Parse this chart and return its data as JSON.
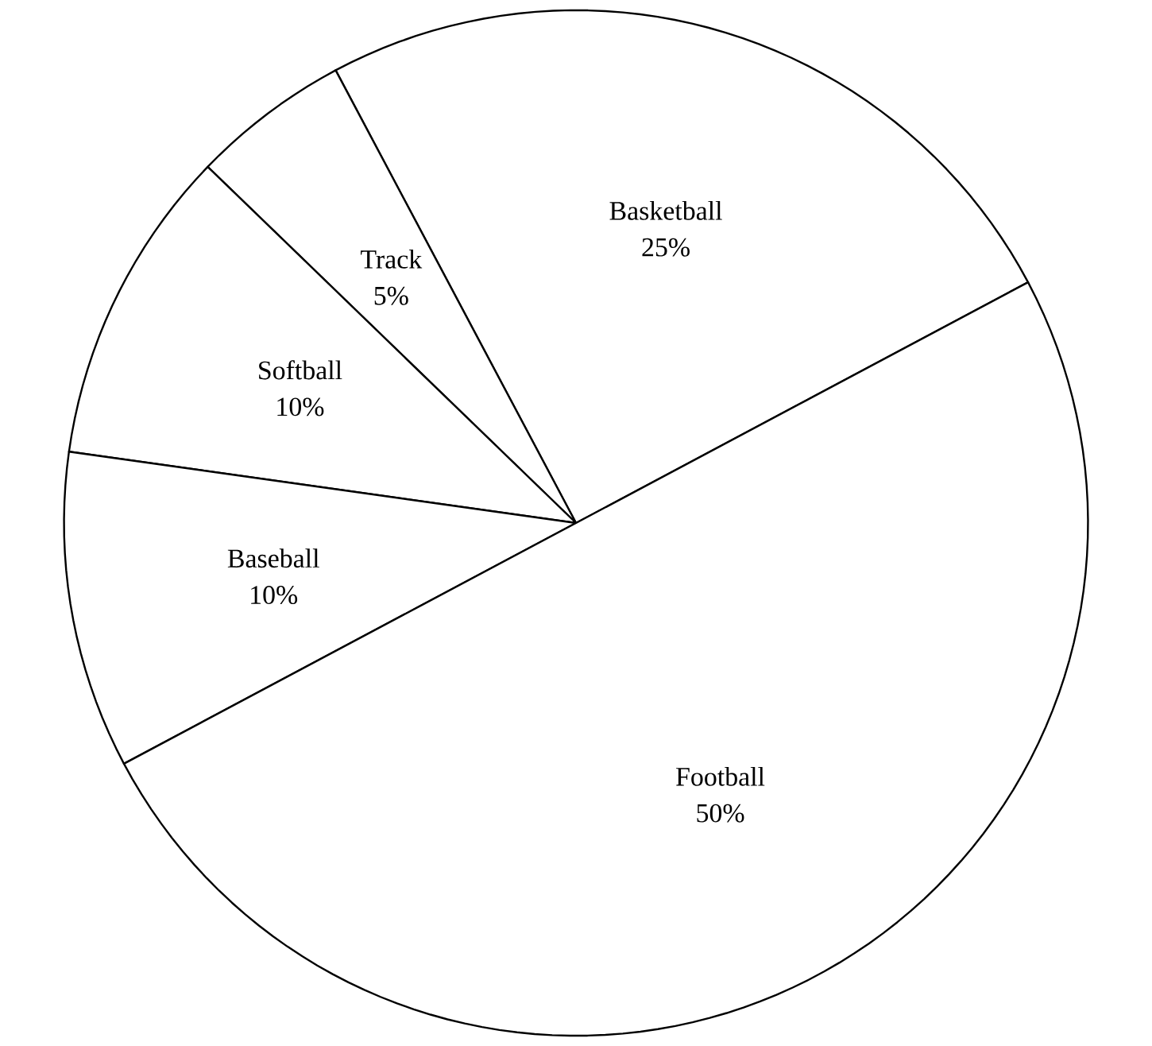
{
  "chart_data": {
    "type": "pie",
    "categories": [
      "Basketball",
      "Track",
      "Softball",
      "Baseball",
      "Football"
    ],
    "values": [
      25,
      5,
      10,
      10,
      50
    ],
    "value_labels": [
      "25%",
      "5%",
      "10%",
      "10%",
      "50%"
    ],
    "colors": [
      "#ffffff",
      "#ffffff",
      "#ffffff",
      "#ffffff",
      "#ffffff"
    ]
  }
}
